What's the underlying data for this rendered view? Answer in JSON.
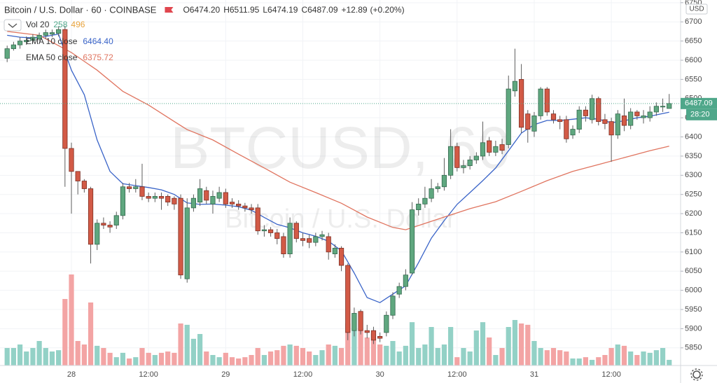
{
  "chart_data": {
    "type": "candlestick",
    "title": "Bitcoin / U.S. Dollar · 60 · COINBASE",
    "watermark": "BTCUSD, 60",
    "watermark_subtitle": "Bitcoin / U.S. Dollar",
    "currency": "USD",
    "ohlc_labels": [
      "O",
      "H",
      "L",
      "C"
    ],
    "ohlc_value_labels": [
      "6474.20",
      "6511.95",
      "6474.19",
      "6487.09"
    ],
    "change": "+12.89",
    "change_pct": "(+0.20%)",
    "countdown": "28:20",
    "up_color": "#5fa77f",
    "down_color": "#d25a46",
    "volume_up_color": "#93d1c6",
    "volume_down_color": "#f3a4a4",
    "volume_name": "Vol 20",
    "volume_ma": 496,
    "volume_ma_color": "#e8a33d",
    "categories": [
      null,
      null,
      null,
      null,
      null,
      null,
      null,
      null,
      null,
      null,
      "28",
      null,
      null,
      null,
      null,
      null,
      null,
      null,
      null,
      null,
      null,
      null,
      "12:00",
      null,
      null,
      null,
      null,
      null,
      null,
      null,
      null,
      null,
      null,
      null,
      "29",
      null,
      null,
      null,
      null,
      null,
      null,
      null,
      null,
      null,
      null,
      null,
      "12:00",
      null,
      null,
      null,
      null,
      null,
      null,
      null,
      null,
      null,
      null,
      null,
      "30",
      null,
      null,
      null,
      null,
      null,
      null,
      null,
      null,
      null,
      null,
      null,
      "12:00",
      null,
      null,
      null,
      null,
      null,
      null,
      null,
      null,
      null,
      null,
      null,
      "31",
      null,
      null,
      null,
      null,
      null,
      null,
      null,
      null,
      null,
      null,
      null,
      "12:00",
      null,
      null,
      null,
      null,
      null,
      null,
      null,
      null,
      null
    ],
    "opens": [
      6605,
      6630,
      6640,
      6648,
      6652,
      6655,
      6665,
      6668,
      6670,
      6680,
      6370,
      6310,
      6285,
      6265,
      6120,
      6175,
      6170,
      6170,
      6195,
      6270,
      6265,
      6270,
      6245,
      6240,
      6245,
      6245,
      6240,
      6240,
      6030,
      6215,
      6230,
      6260,
      6225,
      6240,
      6255,
      6230,
      6225,
      6220,
      6215,
      6215,
      6155,
      6158,
      6150,
      6140,
      6095,
      6175,
      6135,
      6135,
      6125,
      6140,
      6140,
      6095,
      6110,
      6065,
      5895,
      5945,
      5895,
      5895,
      5880,
      5890,
      5935,
      5990,
      6010,
      6045,
      6210,
      6225,
      6240,
      6265,
      6270,
      6300,
      6375,
      6320,
      6325,
      6340,
      6350,
      6390,
      6360,
      6380,
      6380,
      6520,
      6550,
      6460,
      6415,
      6455,
      6525,
      6460,
      6445,
      6445,
      6405,
      6420,
      6470,
      6445,
      6500,
      6445,
      6440,
      6405,
      6455,
      6430,
      6465,
      6450,
      6450,
      6465,
      6478,
      6474.2
    ],
    "highs": [
      6638,
      6648,
      6660,
      6662,
      6668,
      6672,
      6680,
      6680,
      6688,
      6690,
      6385,
      6300,
      6290,
      6270,
      6185,
      6190,
      6180,
      6205,
      6280,
      6280,
      6290,
      6330,
      6255,
      6255,
      6255,
      6250,
      6245,
      6250,
      6240,
      6250,
      6290,
      6270,
      6260,
      6270,
      6265,
      6240,
      6235,
      6228,
      6225,
      6225,
      6170,
      6165,
      6160,
      6150,
      6190,
      6180,
      6150,
      6145,
      6150,
      6155,
      6150,
      6120,
      6115,
      6070,
      5955,
      5950,
      5910,
      5905,
      5890,
      5945,
      5995,
      6020,
      6055,
      6230,
      6240,
      6270,
      6290,
      6280,
      6345,
      6420,
      6385,
      6340,
      6350,
      6360,
      6440,
      6400,
      6390,
      6395,
      6560,
      6630,
      6590,
      6470,
      6465,
      6530,
      6530,
      6470,
      6455,
      6455,
      6430,
      6480,
      6480,
      6510,
      6505,
      6460,
      6450,
      6470,
      6500,
      6475,
      6470,
      6470,
      6480,
      6490,
      6500,
      6511.95
    ],
    "lows": [
      6595,
      6625,
      6630,
      6640,
      6645,
      6650,
      6655,
      6660,
      6662,
      6270,
      6200,
      6250,
      6255,
      6070,
      6105,
      6160,
      6150,
      6160,
      6185,
      6255,
      6255,
      6235,
      6230,
      6230,
      6210,
      6220,
      6210,
      6030,
      6020,
      6205,
      6220,
      6225,
      6200,
      6230,
      6215,
      6215,
      6210,
      6205,
      6200,
      6145,
      6140,
      6140,
      6120,
      6085,
      6085,
      6125,
      6115,
      6110,
      6115,
      6130,
      6080,
      6085,
      6050,
      5870,
      5880,
      5885,
      5875,
      5860,
      5865,
      5880,
      5925,
      5980,
      6000,
      6040,
      6195,
      6215,
      6230,
      6255,
      6260,
      6290,
      6310,
      6305,
      6315,
      6330,
      6340,
      6350,
      6350,
      6355,
      6370,
      6505,
      6410,
      6385,
      6400,
      6445,
      6455,
      6435,
      6420,
      6385,
      6395,
      6410,
      6440,
      6435,
      6430,
      6420,
      6335,
      6395,
      6415,
      6420,
      6445,
      6435,
      6440,
      6455,
      6465,
      6474.19
    ],
    "closes": [
      6630,
      6640,
      6650,
      6652,
      6660,
      6665,
      6672,
      6672,
      6680,
      6370,
      6310,
      6285,
      6265,
      6120,
      6175,
      6170,
      6165,
      6195,
      6270,
      6265,
      6270,
      6245,
      6240,
      6245,
      6240,
      6230,
      6225,
      6040,
      6215,
      6240,
      6265,
      6235,
      6245,
      6255,
      6225,
      6225,
      6220,
      6215,
      6210,
      6155,
      6158,
      6150,
      6135,
      6095,
      6175,
      6135,
      6130,
      6125,
      6140,
      6145,
      6100,
      6110,
      6065,
      5890,
      5940,
      5895,
      5890,
      5870,
      5875,
      5935,
      5985,
      6010,
      6040,
      6210,
      6225,
      6240,
      6265,
      6270,
      6300,
      6375,
      6320,
      6325,
      6340,
      6350,
      6385,
      6360,
      6375,
      6365,
      6525,
      6545,
      6425,
      6420,
      6455,
      6525,
      6465,
      6445,
      6440,
      6395,
      6420,
      6470,
      6455,
      6500,
      6440,
      6435,
      6405,
      6460,
      6430,
      6465,
      6455,
      6455,
      6465,
      6480,
      6480,
      6487.09
    ],
    "volumes": [
      800,
      800,
      960,
      640,
      800,
      1120,
      800,
      640,
      700,
      3040,
      4160,
      1120,
      960,
      2880,
      900,
      800,
      580,
      380,
      580,
      320,
      380,
      800,
      580,
      480,
      580,
      640,
      580,
      1920,
      1860,
      1220,
      1440,
      640,
      480,
      380,
      580,
      380,
      320,
      380,
      480,
      800,
      480,
      640,
      700,
      900,
      960,
      900,
      800,
      640,
      480,
      700,
      960,
      900,
      800,
      1920,
      2400,
      1600,
      1280,
      1440,
      960,
      900,
      1120,
      640,
      900,
      1980,
      800,
      960,
      1760,
      800,
      960,
      1760,
      380,
      800,
      640,
      1600,
      1980,
      1280,
      480,
      800,
      1760,
      2080,
      1920,
      1860,
      1120,
      800,
      700,
      800,
      700,
      640,
      320,
      320,
      380,
      258,
      380,
      480,
      800,
      960,
      900,
      640,
      480,
      640,
      580,
      700,
      800,
      258
    ],
    "series": [
      {
        "name": "EMA 10 close",
        "color": "#3a64c8",
        "legend_value": "6464.40",
        "x": [
          0,
          2,
          4,
          6,
          8,
          10,
          12,
          14,
          16,
          18,
          20,
          22,
          24,
          26,
          28,
          30,
          32,
          34,
          36,
          38,
          40,
          42,
          44,
          46,
          48,
          50,
          52,
          54,
          56,
          58,
          60,
          62,
          64,
          66,
          68,
          70,
          72,
          74,
          76,
          78,
          80,
          82,
          84,
          86,
          88,
          90,
          92,
          94,
          96,
          98,
          100,
          103
        ],
        "values": [
          6665,
          6660,
          6658,
          6662,
          6668,
          6574,
          6510,
          6392,
          6310,
          6278,
          6273,
          6268,
          6262,
          6250,
          6228,
          6224,
          6225,
          6222,
          6218,
          6209,
          6190,
          6172,
          6163,
          6150,
          6141,
          6128,
          6103,
          6045,
          5981,
          5968,
          5990,
          6012,
          6072,
          6136,
          6182,
          6224,
          6255,
          6286,
          6319,
          6364,
          6410,
          6432,
          6443,
          6443,
          6446,
          6450,
          6446,
          6437,
          6442,
          6450,
          6454,
          6464.4
        ]
      },
      {
        "name": "EMA 50 close",
        "color": "#e0745f",
        "legend_value": "6375.72",
        "x": [
          0,
          5,
          10,
          14,
          18,
          22,
          26,
          28,
          32,
          36,
          40,
          44,
          48,
          52,
          56,
          60,
          62,
          64,
          68,
          72,
          76,
          80,
          84,
          88,
          92,
          96,
          100,
          103
        ],
        "values": [
          6675,
          6665,
          6620,
          6574,
          6519,
          6483,
          6440,
          6419,
          6392,
          6355,
          6319,
          6282,
          6255,
          6227,
          6191,
          6164,
          6158,
          6169,
          6191,
          6213,
          6231,
          6258,
          6286,
          6310,
          6328,
          6346,
          6364,
          6375.72
        ]
      }
    ],
    "ylim": [
      5804,
      6757
    ],
    "yticks": [
      5850,
      5900,
      5950,
      6000,
      6050,
      6100,
      6150,
      6200,
      6250,
      6300,
      6350,
      6400,
      6450,
      6500,
      6550,
      6600,
      6650,
      6700,
      6750
    ],
    "grid": true,
    "price_line_color": "#4fa78a"
  }
}
